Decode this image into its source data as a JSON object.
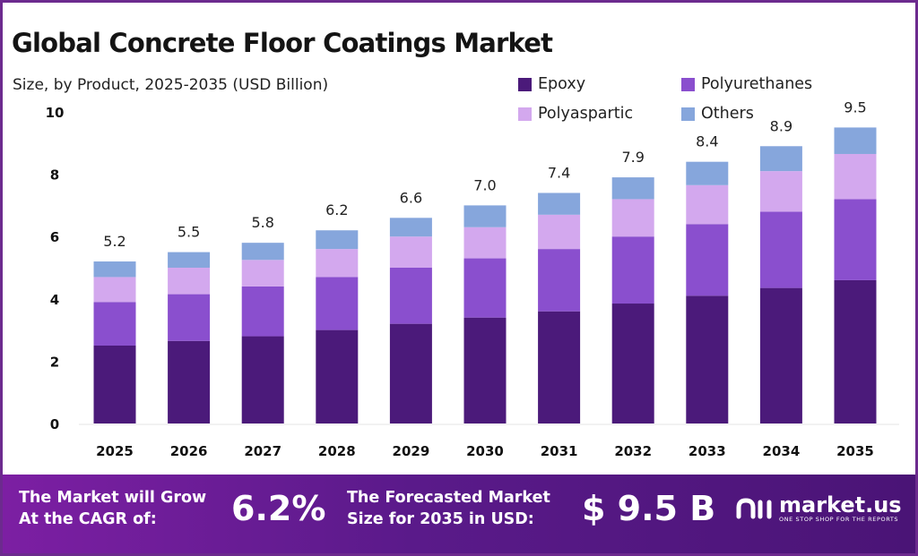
{
  "title": "Global Concrete Floor Coatings Market",
  "subtitle": "Size, by Product, 2025-2035 (USD Billion)",
  "colors": {
    "Epoxy": "#4b1a7a",
    "Polyurethanes": "#8a4fce",
    "Polyaspartic": "#d3a8ee",
    "Others": "#86a6dc",
    "banner": "#5a1a8a"
  },
  "chart_data": {
    "type": "bar",
    "stacked": true,
    "categories": [
      "2025",
      "2026",
      "2027",
      "2028",
      "2029",
      "2030",
      "2031",
      "2032",
      "2033",
      "2034",
      "2035"
    ],
    "series": [
      {
        "name": "Epoxy",
        "values": [
          2.5,
          2.65,
          2.8,
          3.0,
          3.2,
          3.4,
          3.6,
          3.85,
          4.1,
          4.35,
          4.6
        ]
      },
      {
        "name": "Polyurethanes",
        "values": [
          1.4,
          1.5,
          1.6,
          1.7,
          1.8,
          1.9,
          2.0,
          2.15,
          2.3,
          2.45,
          2.6
        ]
      },
      {
        "name": "Polyaspartic",
        "values": [
          0.8,
          0.85,
          0.85,
          0.9,
          1.0,
          1.0,
          1.1,
          1.2,
          1.25,
          1.3,
          1.45
        ]
      },
      {
        "name": "Others",
        "values": [
          0.5,
          0.5,
          0.55,
          0.6,
          0.6,
          0.7,
          0.7,
          0.7,
          0.75,
          0.8,
          0.85
        ]
      }
    ],
    "totals": [
      "5.2",
      "5.5",
      "5.8",
      "6.2",
      "6.6",
      "7.0",
      "7.4",
      "7.9",
      "8.4",
      "8.9",
      "9.5"
    ],
    "ylim": [
      0,
      10
    ],
    "yticks": [
      "0",
      "2",
      "4",
      "6",
      "8",
      "10"
    ],
    "grid": false,
    "legend_position": "top-right"
  },
  "banner": {
    "cagr_label_line1": "The Market will Grow",
    "cagr_label_line2": "At the CAGR of:",
    "cagr_value": "6.2%",
    "forecast_label_line1": "The Forecasted Market",
    "forecast_label_line2": "Size for 2035 in USD:",
    "forecast_value": "$ 9.5 B",
    "logo_name": "market.us",
    "logo_tagline": "ONE STOP SHOP FOR THE REPORTS"
  }
}
